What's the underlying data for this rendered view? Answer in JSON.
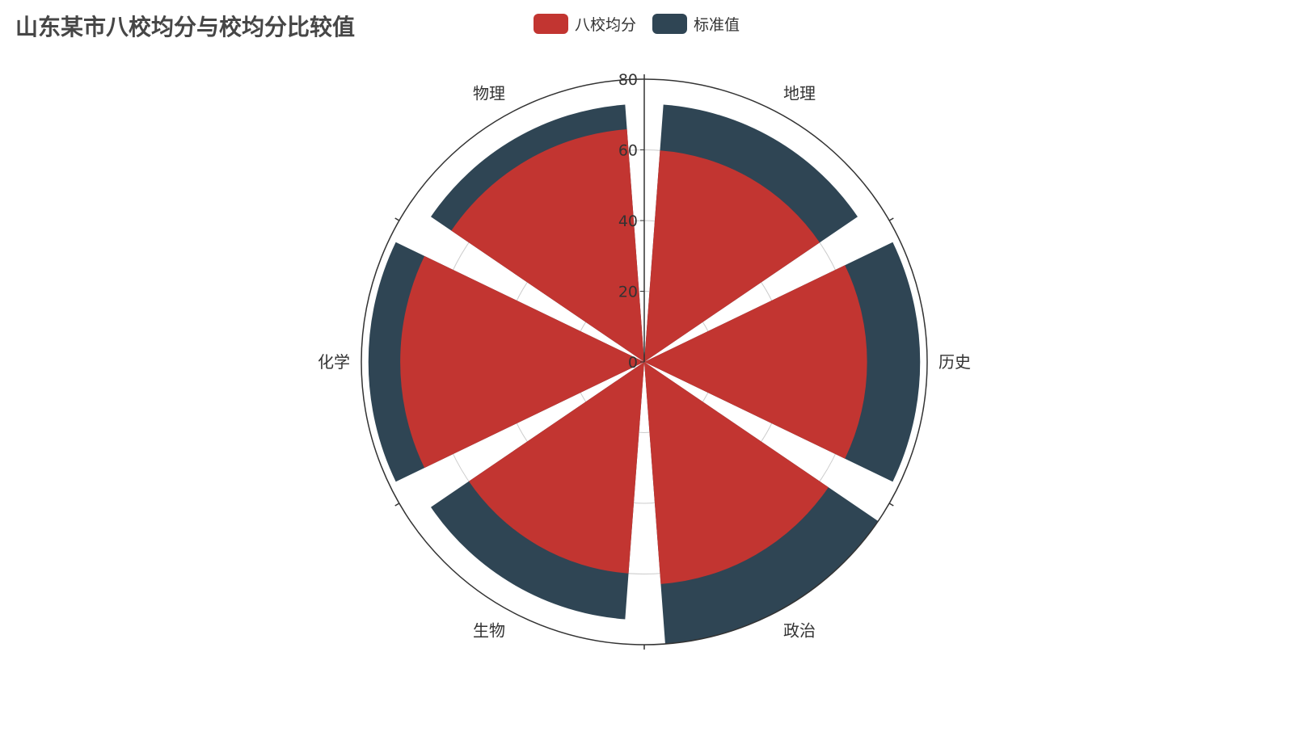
{
  "colors": {
    "series_1": "#c23531",
    "series_2": "#2f4554",
    "axis": "#333333",
    "grid": "#cccccc",
    "label": "#333333"
  },
  "chart_data": {
    "type": "polar-bar",
    "title": "山东某市八校均分与校均分比较值",
    "categories": [
      "地理",
      "历史",
      "政治",
      "生物",
      "化学",
      "物理"
    ],
    "series": [
      {
        "name": "八校均分",
        "values": [
          60,
          63,
          63,
          60,
          69,
          66
        ]
      },
      {
        "name": "标准值",
        "values": [
          73,
          78,
          80,
          73,
          78,
          73
        ],
        "stack": "overlay"
      }
    ],
    "radius_ticks": [
      "0",
      "20",
      "40",
      "60",
      "80"
    ],
    "rmax": 80,
    "legend_position": "top-center"
  }
}
